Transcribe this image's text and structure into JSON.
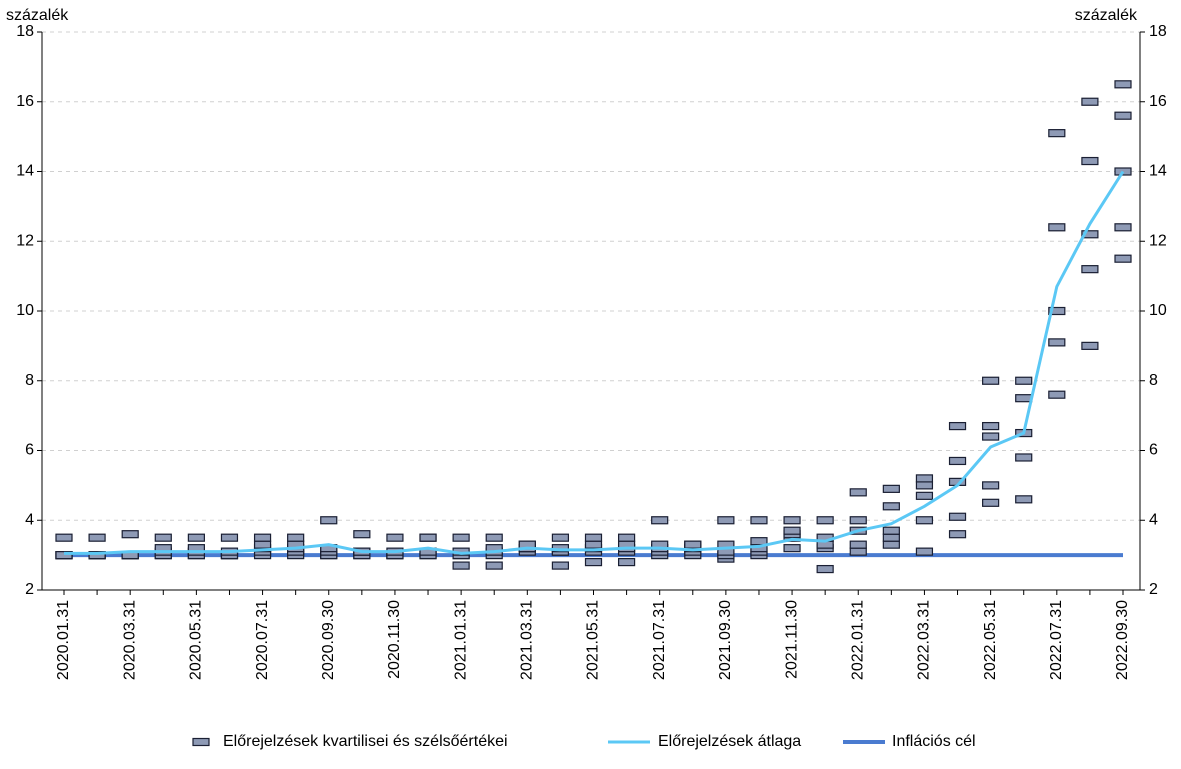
{
  "chart_data": {
    "type": "line",
    "y_label": "százalék",
    "y2_label": "százalék",
    "categories": [
      "2020.01.31",
      null,
      "2020.03.31",
      null,
      "2020.05.31",
      null,
      "2020.07.31",
      null,
      "2020.09.30",
      null,
      "2020.11.30",
      null,
      "2021.01.31",
      null,
      "2021.03.31",
      null,
      "2021.05.31",
      null,
      "2021.07.31",
      null,
      "2021.09.30",
      null,
      "2021.11.30",
      null,
      "2022.01.31",
      null,
      "2022.03.31",
      null,
      "2022.05.31",
      null,
      "2022.07.31",
      null,
      "2022.09.30"
    ],
    "ylim": [
      2,
      18
    ],
    "yticks": [
      2,
      4,
      6,
      8,
      10,
      12,
      14,
      16,
      18
    ],
    "y2lim": [
      2,
      18
    ],
    "y2ticks": [
      2,
      4,
      6,
      8,
      10,
      12,
      14,
      16,
      18
    ],
    "grid": true,
    "legend": "bottom",
    "markers": {
      "name": "Előrejelzések kvartilisei és szélsőértékei",
      "color": "#8e9ab5",
      "values": [
        [
          3.0,
          3.0,
          3.0,
          3.0,
          3.5
        ],
        [
          3.0,
          3.0,
          3.0,
          3.0,
          3.5
        ],
        [
          3.0,
          3.0,
          3.0,
          3.0,
          3.6
        ],
        [
          3.0,
          3.0,
          3.1,
          3.2,
          3.5
        ],
        [
          3.0,
          3.0,
          3.1,
          3.2,
          3.5
        ],
        [
          3.0,
          3.0,
          3.0,
          3.1,
          3.5
        ],
        [
          3.0,
          3.1,
          3.2,
          3.3,
          3.5
        ],
        [
          3.0,
          3.1,
          3.2,
          3.3,
          3.5
        ],
        [
          3.0,
          3.0,
          3.1,
          3.2,
          4.0
        ],
        [
          3.0,
          3.0,
          3.1,
          3.1,
          3.6
        ],
        [
          3.0,
          3.0,
          3.0,
          3.1,
          3.5
        ],
        [
          3.0,
          3.0,
          3.1,
          3.5,
          3.5
        ],
        [
          2.7,
          3.0,
          3.0,
          3.1,
          3.5
        ],
        [
          2.7,
          3.0,
          3.1,
          3.2,
          3.5
        ],
        [
          3.1,
          3.2,
          3.2,
          3.3,
          3.3
        ],
        [
          2.7,
          3.1,
          3.1,
          3.2,
          3.5
        ],
        [
          2.8,
          3.1,
          3.2,
          3.3,
          3.5
        ],
        [
          2.8,
          3.1,
          3.2,
          3.3,
          3.5
        ],
        [
          3.0,
          3.1,
          3.2,
          3.3,
          4.0
        ],
        [
          3.0,
          3.1,
          3.2,
          3.3,
          3.3
        ],
        [
          2.9,
          3.0,
          3.1,
          3.3,
          4.0
        ],
        [
          3.0,
          3.1,
          3.2,
          3.4,
          4.0
        ],
        [
          3.2,
          3.5,
          3.6,
          3.7,
          4.0
        ],
        [
          2.6,
          3.2,
          3.3,
          3.5,
          4.0
        ],
        [
          3.1,
          3.3,
          3.7,
          4.0,
          4.8
        ],
        [
          3.3,
          3.5,
          3.7,
          4.4,
          4.9
        ],
        [
          3.1,
          4.0,
          4.7,
          5.0,
          5.2
        ],
        [
          3.6,
          4.1,
          5.1,
          5.7,
          6.7
        ],
        [
          4.5,
          5.0,
          6.4,
          6.7,
          8.0
        ],
        [
          4.6,
          5.8,
          6.5,
          7.5,
          8.0
        ],
        [
          7.6,
          9.1,
          10.0,
          12.4,
          15.1
        ],
        [
          9.0,
          11.2,
          12.2,
          14.3,
          16.0
        ],
        [
          11.5,
          12.4,
          14.0,
          15.6,
          16.5
        ]
      ]
    },
    "series": [
      {
        "name": "Előrejelzések átlaga",
        "color": "#5bc8f5",
        "values": [
          3.05,
          3.05,
          3.1,
          3.1,
          3.1,
          3.1,
          3.15,
          3.2,
          3.3,
          3.1,
          3.1,
          3.2,
          3.05,
          3.1,
          3.2,
          3.15,
          3.15,
          3.2,
          3.2,
          3.15,
          3.2,
          3.25,
          3.45,
          3.4,
          3.7,
          3.9,
          4.4,
          5.0,
          6.1,
          6.5,
          10.7,
          12.5,
          14.0
        ]
      },
      {
        "name": "Inflációs cél",
        "color": "#4a7bd0",
        "values": [
          3,
          3,
          3,
          3,
          3,
          3,
          3,
          3,
          3,
          3,
          3,
          3,
          3,
          3,
          3,
          3,
          3,
          3,
          3,
          3,
          3,
          3,
          3,
          3,
          3,
          3,
          3,
          3,
          3,
          3,
          3,
          3,
          3
        ]
      }
    ]
  }
}
